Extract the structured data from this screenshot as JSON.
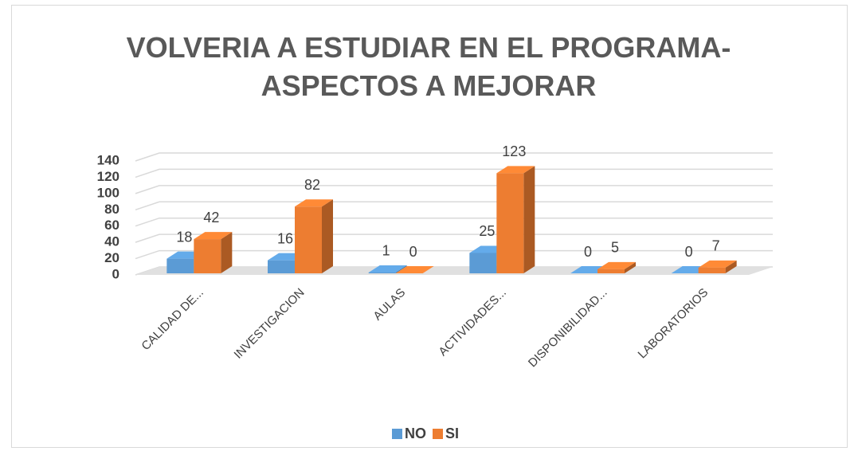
{
  "chart_data": {
    "type": "bar3d",
    "title": "VOLVERIA A ESTUDIAR EN EL PROGRAMA- ASPECTOS A MEJORAR",
    "categories": [
      "CALIDAD DE...",
      "INVESTIGACION",
      "AULAS",
      "ACTIVIDADES...",
      "DISPONIBILIDAD...",
      "LABORATORIOS"
    ],
    "series": [
      {
        "name": "NO",
        "color": "#5b9bd5",
        "values": [
          18,
          16,
          1,
          25,
          0,
          0
        ]
      },
      {
        "name": "SI",
        "color": "#ed7d31",
        "values": [
          42,
          82,
          0,
          123,
          5,
          7
        ]
      }
    ],
    "ylim": [
      0,
      140
    ],
    "yticks": [
      0,
      20,
      40,
      60,
      80,
      100,
      120,
      140
    ],
    "grid": true,
    "legend": "bottom"
  }
}
